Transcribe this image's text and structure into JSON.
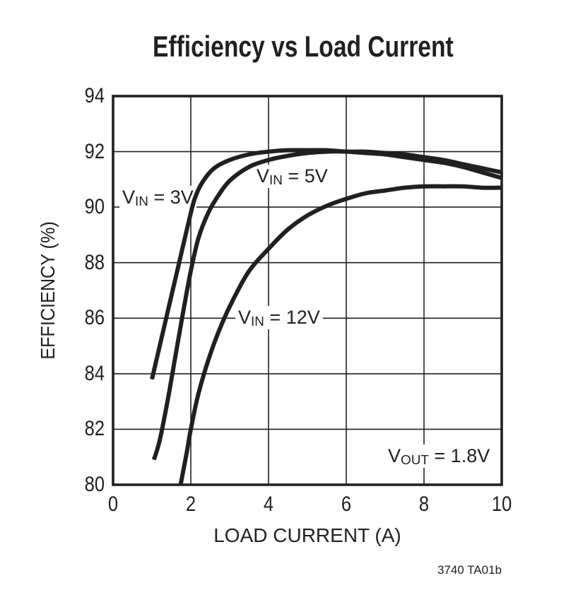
{
  "figure": {
    "title": "Efficiency vs Load Current",
    "part_code": "3740 TA01b"
  },
  "labels": {
    "vin3": {
      "prefix": "V",
      "sub": "IN",
      "suffix": " = 3V"
    },
    "vin5": {
      "prefix": "V",
      "sub": "IN",
      "suffix": " = 5V"
    },
    "vin12": {
      "prefix": "V",
      "sub": "IN",
      "suffix": " = 12V"
    },
    "vout": {
      "prefix": "V",
      "sub": "OUT",
      "suffix": " = 1.8V"
    }
  },
  "chart_data": {
    "type": "line",
    "title": "Efficiency vs Load Current",
    "xlabel": "LOAD CURRENT (A)",
    "ylabel": "EFFICIENCY (%)",
    "xlim": [
      0,
      10
    ],
    "ylim": [
      80,
      94
    ],
    "x_ticks": [
      0,
      2,
      4,
      6,
      8,
      10
    ],
    "y_ticks": [
      80,
      82,
      84,
      86,
      88,
      90,
      92,
      94
    ],
    "grid": true,
    "legend": false,
    "line_color": "#231f20",
    "series": [
      {
        "name": "VIN = 3V",
        "points": [
          [
            1.0,
            83.8
          ],
          [
            1.2,
            85.0
          ],
          [
            1.4,
            86.2
          ],
          [
            1.6,
            87.4
          ],
          [
            1.8,
            88.6
          ],
          [
            1.95,
            89.5
          ],
          [
            2.1,
            90.3
          ],
          [
            2.3,
            90.9
          ],
          [
            2.6,
            91.4
          ],
          [
            3.0,
            91.7
          ],
          [
            3.5,
            91.9
          ],
          [
            4.0,
            92.0
          ],
          [
            4.5,
            92.05
          ],
          [
            5.0,
            92.05
          ],
          [
            5.5,
            92.05
          ],
          [
            6.0,
            92.0
          ],
          [
            6.5,
            92.0
          ],
          [
            7.0,
            91.95
          ],
          [
            7.5,
            91.9
          ],
          [
            8.0,
            91.8
          ],
          [
            8.5,
            91.7
          ],
          [
            9.0,
            91.55
          ],
          [
            9.5,
            91.4
          ],
          [
            10.0,
            91.25
          ]
        ]
      },
      {
        "name": "VIN = 5V",
        "points": [
          [
            1.05,
            80.9
          ],
          [
            1.2,
            81.6
          ],
          [
            1.4,
            83.0
          ],
          [
            1.6,
            84.6
          ],
          [
            1.8,
            86.2
          ],
          [
            2.0,
            87.7
          ],
          [
            2.2,
            88.9
          ],
          [
            2.45,
            89.8
          ],
          [
            2.7,
            90.4
          ],
          [
            3.0,
            90.95
          ],
          [
            3.5,
            91.45
          ],
          [
            4.0,
            91.7
          ],
          [
            4.5,
            91.85
          ],
          [
            5.0,
            91.95
          ],
          [
            5.5,
            92.0
          ],
          [
            6.0,
            92.0
          ],
          [
            6.5,
            91.95
          ],
          [
            7.0,
            91.9
          ],
          [
            7.5,
            91.8
          ],
          [
            8.0,
            91.7
          ],
          [
            8.5,
            91.6
          ],
          [
            9.0,
            91.45
          ],
          [
            9.5,
            91.25
          ],
          [
            10.0,
            91.05
          ]
        ]
      },
      {
        "name": "VIN = 12V",
        "points": [
          [
            1.6,
            79.1
          ],
          [
            1.75,
            80.1
          ],
          [
            1.9,
            81.2
          ],
          [
            2.0,
            82.0
          ],
          [
            2.2,
            83.3
          ],
          [
            2.5,
            84.7
          ],
          [
            2.8,
            85.8
          ],
          [
            3.1,
            86.7
          ],
          [
            3.5,
            87.7
          ],
          [
            4.0,
            88.5
          ],
          [
            4.5,
            89.2
          ],
          [
            5.0,
            89.7
          ],
          [
            5.5,
            90.05
          ],
          [
            6.0,
            90.3
          ],
          [
            6.5,
            90.5
          ],
          [
            7.0,
            90.6
          ],
          [
            7.5,
            90.7
          ],
          [
            8.0,
            90.75
          ],
          [
            8.5,
            90.75
          ],
          [
            9.0,
            90.75
          ],
          [
            9.5,
            90.7
          ],
          [
            10.0,
            90.7
          ]
        ]
      }
    ],
    "annotations": [
      {
        "text": "VIN = 3V",
        "x": 1.2,
        "y": 90.3
      },
      {
        "text": "VIN = 5V",
        "x": 4.6,
        "y": 91.0
      },
      {
        "text": "VIN = 12V",
        "x": 4.2,
        "y": 86.0
      },
      {
        "text": "VOUT = 1.8V",
        "x": 8.4,
        "y": 80.9
      }
    ]
  }
}
